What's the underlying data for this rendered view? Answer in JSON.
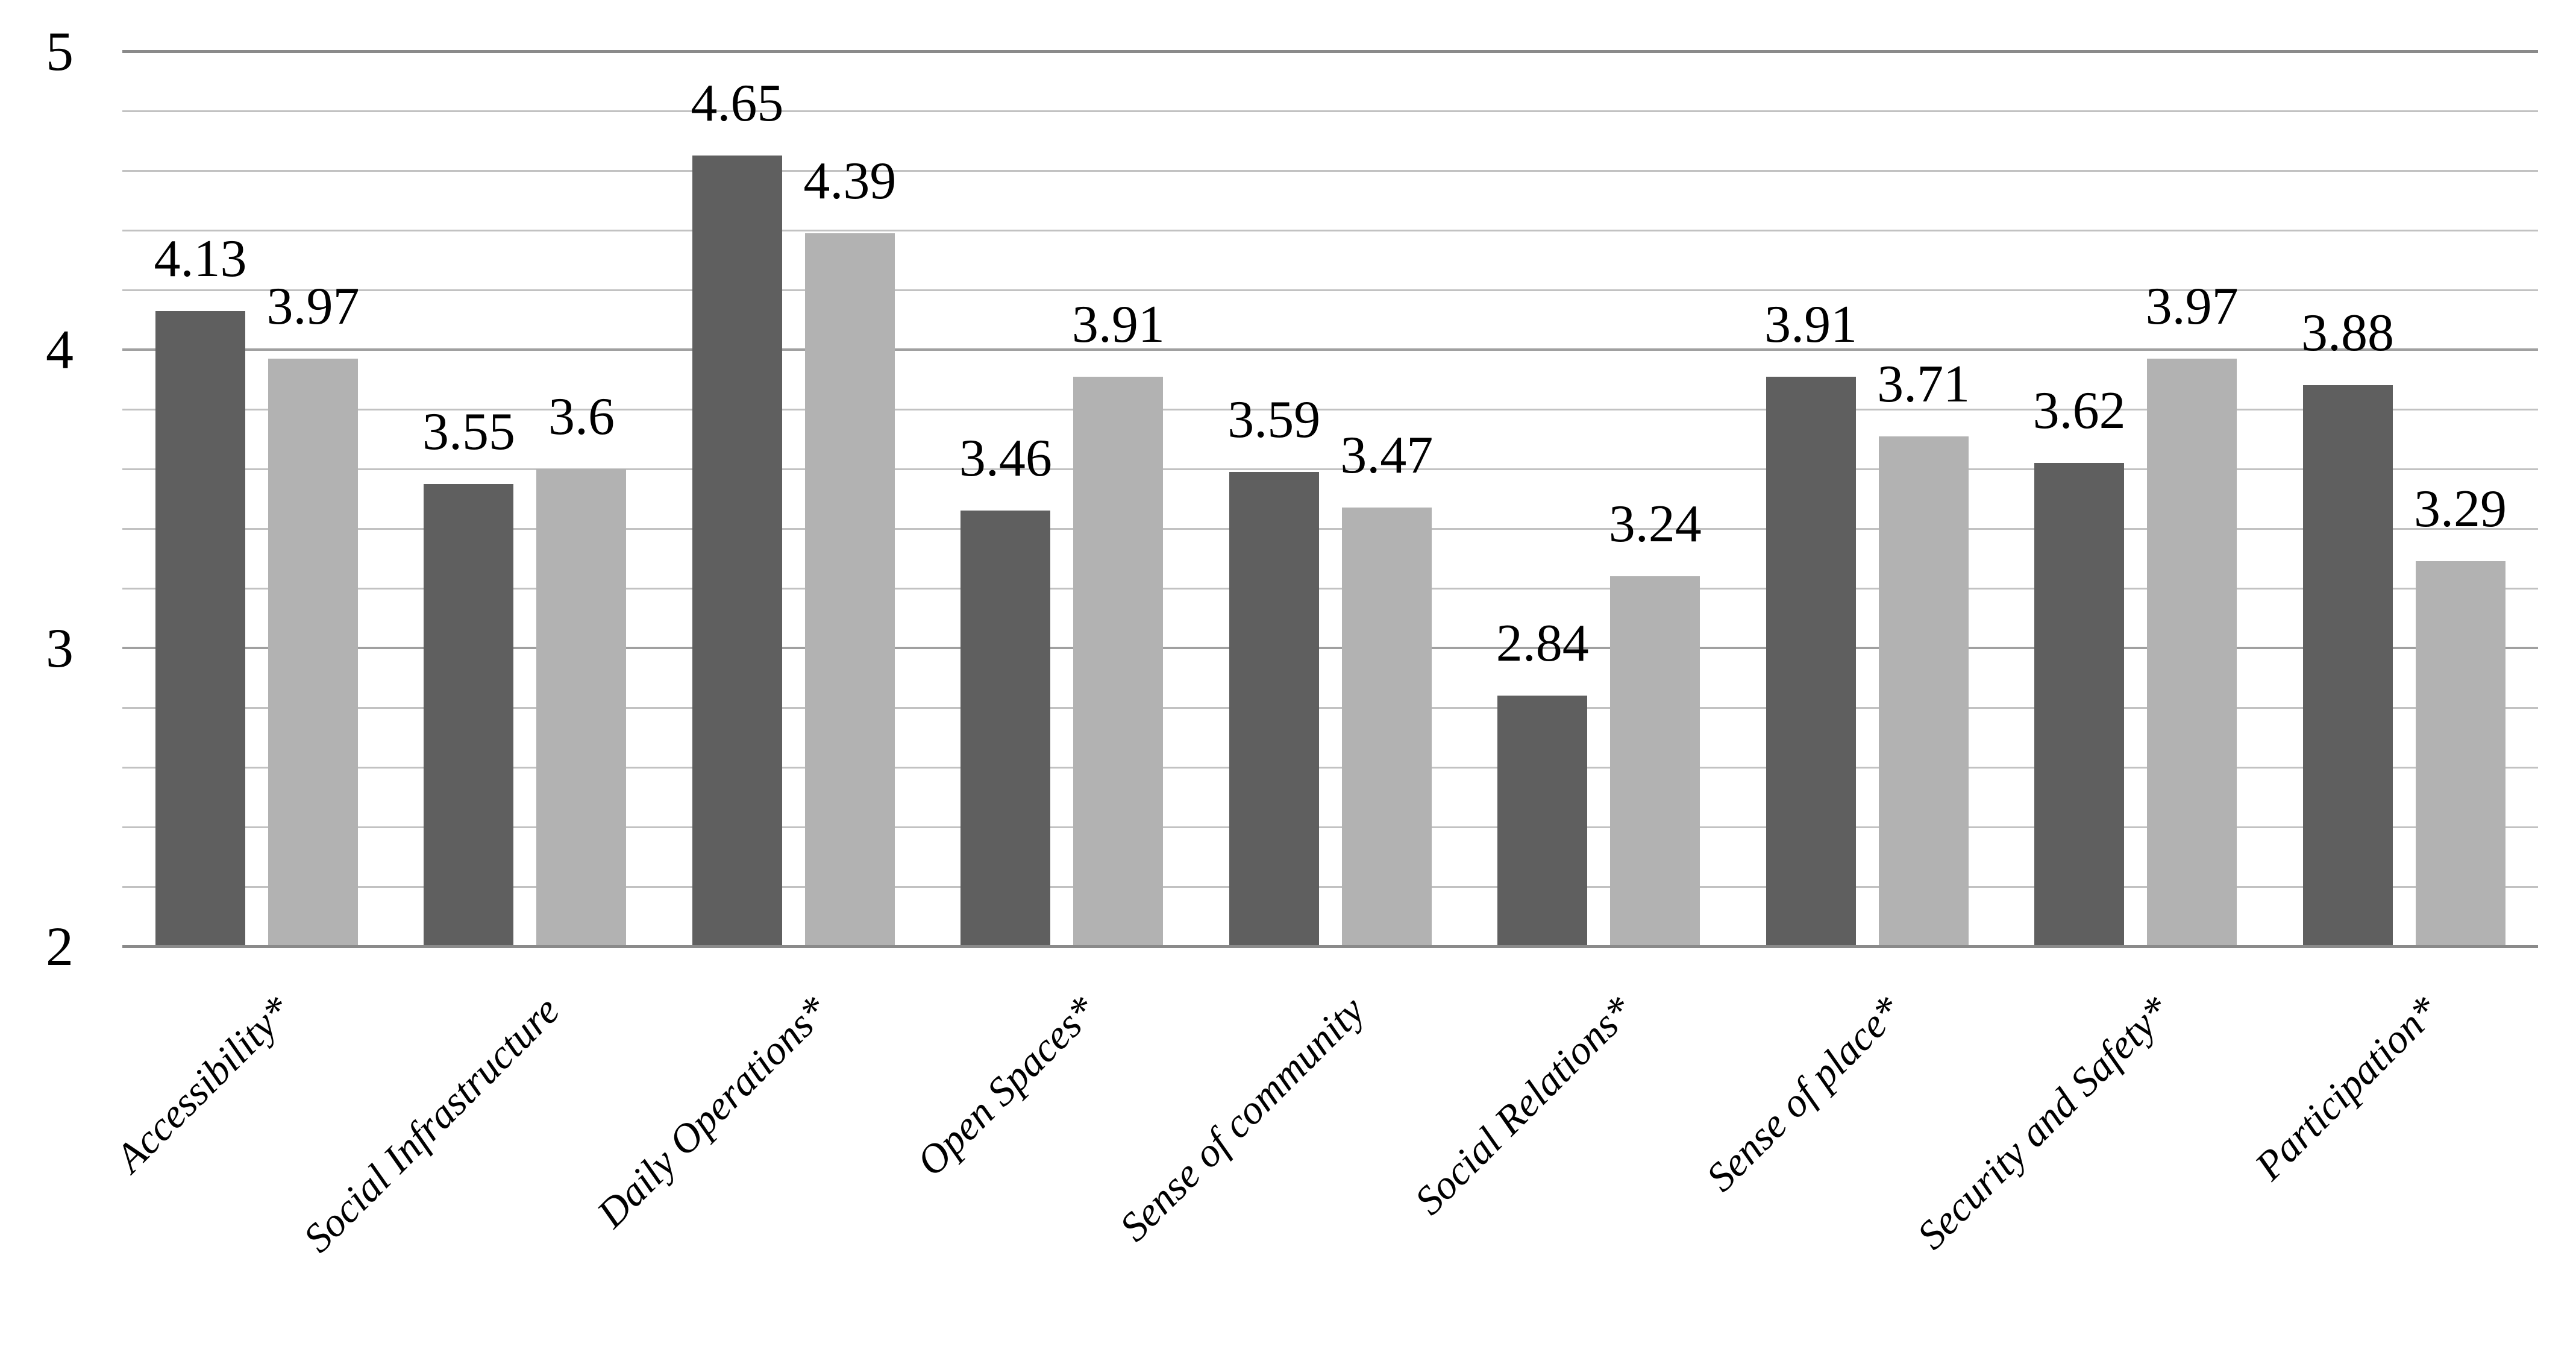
{
  "chart_data": {
    "type": "bar",
    "title": "",
    "categories": [
      "Accessibility*",
      "Social Infrastructure",
      "Daily Operations*",
      "Open Spaces*",
      "Sense of community",
      "Social Relations*",
      "Sense of place*",
      "Security and Safety*",
      "Participation*"
    ],
    "series": [
      {
        "name": "series-1-dark",
        "color": "#5f5f5f",
        "values": [
          4.13,
          3.55,
          4.65,
          3.46,
          3.59,
          2.84,
          3.91,
          3.62,
          3.88
        ],
        "labels": [
          "4.13",
          "3.55",
          "4.65",
          "3.46",
          "3.59",
          "2.84",
          "3.91",
          "3.62",
          "3.88"
        ]
      },
      {
        "name": "series-2-light",
        "color": "#b2b2b2",
        "values": [
          3.97,
          3.6,
          4.39,
          3.91,
          3.47,
          3.24,
          3.71,
          3.97,
          3.29
        ],
        "labels": [
          "3.97",
          "3.6",
          "4.39",
          "3.91",
          "3.47",
          "3.24",
          "3.71",
          "3.97",
          "3.29"
        ]
      }
    ],
    "y_axis": {
      "min": 2,
      "max": 5,
      "tick_labels": [
        "5",
        "4",
        "3",
        "2"
      ],
      "tick_values": [
        5,
        4,
        3,
        2
      ],
      "minor_gridline_step": 0.2
    },
    "legend": "none",
    "grid": true,
    "colors": {
      "background": "#ffffff",
      "minor_gridline": "#c2c2c2",
      "major_gridline": "#a0a0a0",
      "axis_line": "#8a8a8a",
      "text": "#000000"
    }
  }
}
